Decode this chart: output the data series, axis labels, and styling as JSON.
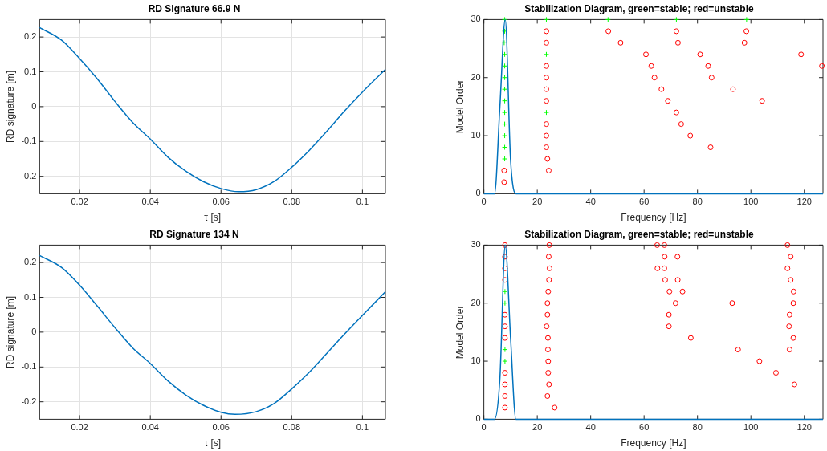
{
  "chart_data": [
    {
      "type": "line",
      "title": "RD Signature 66.9 N",
      "xlabel": "τ [s]",
      "ylabel": "RD signature [m]",
      "xlim": [
        0.0087,
        0.1065
      ],
      "ylim": [
        -0.25,
        0.25
      ],
      "xticks": [
        0.02,
        0.04,
        0.06,
        0.08,
        0.1
      ],
      "yticks": [
        -0.2,
        -0.1,
        0,
        0.1,
        0.2
      ],
      "grid": true,
      "x": [
        0.0087,
        0.015,
        0.02,
        0.025,
        0.03,
        0.035,
        0.04,
        0.045,
        0.05,
        0.055,
        0.06,
        0.065,
        0.07,
        0.075,
        0.08,
        0.085,
        0.09,
        0.095,
        0.1,
        0.1065
      ],
      "series": [
        {
          "color": "#0072bd",
          "values": [
            0.227,
            0.19,
            0.138,
            0.08,
            0.015,
            -0.045,
            -0.093,
            -0.145,
            -0.185,
            -0.215,
            -0.235,
            -0.244,
            -0.238,
            -0.215,
            -0.174,
            -0.125,
            -0.07,
            -0.012,
            0.042,
            0.107
          ]
        }
      ]
    },
    {
      "type": "scatter",
      "title": "Stabilization Diagram, green=stable; red=unstable",
      "xlabel": "Frequency [Hz]",
      "ylabel": "Model Order",
      "xlim": [
        0,
        127
      ],
      "ylim": [
        0,
        30
      ],
      "xticks": [
        0,
        20,
        40,
        60,
        80,
        100,
        120
      ],
      "yticks": [
        0,
        10,
        20,
        30
      ],
      "grid": false,
      "series": [
        {
          "type": "line",
          "color": "#0072bd",
          "x": [
            0,
            4,
            6,
            8,
            10,
            12,
            127
          ],
          "values": [
            0,
            0,
            15,
            30,
            5.8,
            0,
            0
          ]
        },
        {
          "color": "#00ff00",
          "marker": "cross",
          "x": [
            7.8,
            7.8,
            7.8,
            7.8,
            7.8,
            7.8,
            7.8,
            7.8,
            7.8,
            7.8,
            7.6,
            7.8,
            7.8,
            23.4,
            23.4,
            23.4,
            46.5,
            72.1,
            98.4
          ],
          "values": [
            6,
            8,
            10,
            12,
            14,
            16,
            18,
            20,
            22,
            24,
            26,
            28,
            30,
            30,
            24,
            14,
            30,
            30,
            30
          ]
        },
        {
          "color": "#ff0000",
          "marker": "circle",
          "x": [
            7.6,
            7.6,
            23.4,
            23.4,
            23.4,
            23.4,
            23.4,
            23.4,
            23.4,
            23.4,
            23.4,
            23.8,
            24.3,
            46.6,
            51.2,
            60.7,
            81.0,
            118.8,
            62.7,
            84.0,
            126.6,
            63.9,
            85.3,
            66.5,
            93.3,
            68.9,
            104.2,
            72.1,
            73.9,
            77.3,
            84.9,
            72.1,
            72.7,
            98.3,
            97.6
          ],
          "values": [
            2,
            4,
            28,
            26,
            22,
            20,
            18,
            16,
            12,
            10,
            8,
            6,
            4,
            28,
            26,
            24,
            24,
            24,
            22,
            22,
            22,
            20,
            20,
            18,
            18,
            16,
            16,
            14,
            12,
            10,
            8,
            28,
            26,
            28,
            26
          ]
        }
      ]
    },
    {
      "type": "line",
      "title": "RD Signature 134 N",
      "xlabel": "τ [s]",
      "ylabel": "RD signature [m]",
      "xlim": [
        0.0087,
        0.1065
      ],
      "ylim": [
        -0.25,
        0.25
      ],
      "xticks": [
        0.02,
        0.04,
        0.06,
        0.08,
        0.1
      ],
      "yticks": [
        -0.2,
        -0.1,
        0,
        0.1,
        0.2
      ],
      "grid": true,
      "x": [
        0.0087,
        0.015,
        0.02,
        0.025,
        0.03,
        0.035,
        0.04,
        0.045,
        0.05,
        0.055,
        0.06,
        0.064,
        0.07,
        0.075,
        0.08,
        0.085,
        0.09,
        0.095,
        0.1,
        0.1065
      ],
      "series": [
        {
          "color": "#0072bd",
          "values": [
            0.22,
            0.185,
            0.135,
            0.075,
            0.013,
            -0.045,
            -0.09,
            -0.14,
            -0.18,
            -0.21,
            -0.23,
            -0.236,
            -0.228,
            -0.205,
            -0.163,
            -0.115,
            -0.06,
            -0.005,
            0.048,
            0.116
          ]
        }
      ]
    },
    {
      "type": "scatter",
      "title": "Stabilization Diagram, green=stable; red=unstable",
      "xlabel": "Frequency [Hz]",
      "ylabel": "Model Order",
      "xlim": [
        0,
        127
      ],
      "ylim": [
        0,
        30
      ],
      "xticks": [
        0,
        20,
        40,
        60,
        80,
        100,
        120
      ],
      "yticks": [
        0,
        10,
        20,
        30
      ],
      "grid": false,
      "series": [
        {
          "type": "line",
          "color": "#0072bd",
          "x": [
            0,
            4,
            6,
            8,
            10,
            12,
            127
          ],
          "values": [
            0,
            0,
            7,
            30,
            14,
            0,
            0
          ]
        },
        {
          "color": "#00ff00",
          "marker": "cross",
          "x": [
            7.9,
            7.9,
            7.9,
            7.9
          ],
          "values": [
            22,
            20,
            12,
            10
          ]
        },
        {
          "color": "#ff0000",
          "marker": "circle",
          "x": [
            7.9,
            7.9,
            7.9,
            7.9,
            7.9,
            7.9,
            7.9,
            7.9,
            7.9,
            7.9,
            7.9,
            24.5,
            24.3,
            24.6,
            24.4,
            24.1,
            23.8,
            23.8,
            23.5,
            24.0,
            24.0,
            24.1,
            24.1,
            24.4,
            23.8,
            26.5,
            64.9,
            67.6,
            67.7,
            72.5,
            65.0,
            67.6,
            67.9,
            72.6,
            69.5,
            74.4,
            71.8,
            69.3,
            69.3,
            77.5,
            93.0,
            95.2,
            103.2,
            109.4,
            113.7,
            114.9,
            113.7,
            114.9,
            116.0,
            115.9,
            114.5,
            114.3,
            115.9,
            114.5,
            116.3
          ],
          "values": [
            30,
            28,
            26,
            24,
            18,
            16,
            14,
            8,
            6,
            4,
            2,
            30,
            28,
            26,
            24,
            22,
            20,
            18,
            16,
            14,
            12,
            10,
            8,
            6,
            4,
            2,
            30,
            30,
            28,
            28,
            26,
            26,
            24,
            24,
            22,
            22,
            20,
            18,
            16,
            14,
            20,
            12,
            10,
            8,
            30,
            28,
            26,
            24,
            22,
            20,
            18,
            16,
            14,
            12,
            6
          ]
        }
      ]
    }
  ]
}
